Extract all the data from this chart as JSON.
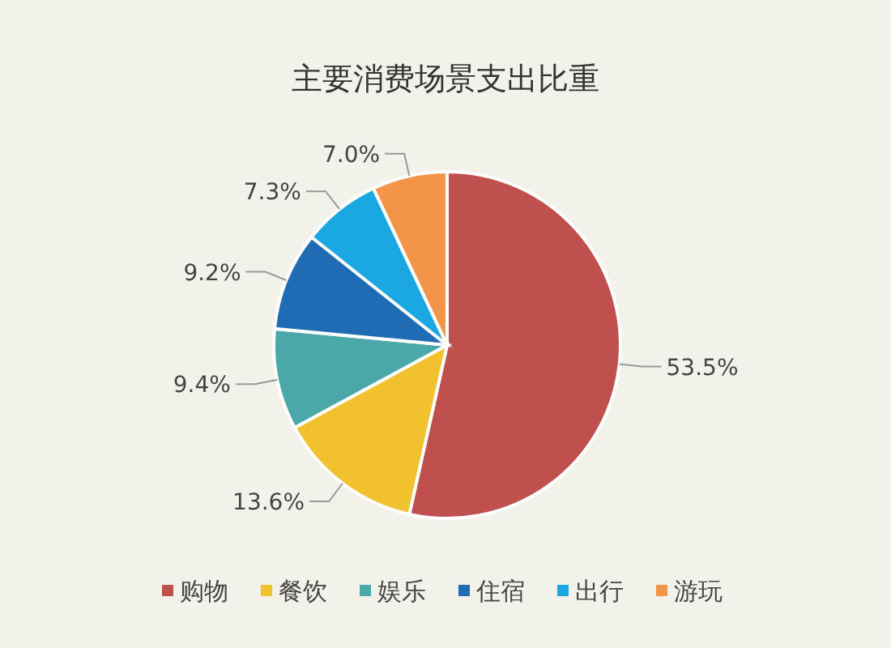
{
  "chart_data": {
    "type": "pie",
    "title": "主要消费场景支出比重",
    "categories": [
      "购物",
      "餐饮",
      "娱乐",
      "住宿",
      "出行",
      "游玩"
    ],
    "values": [
      53.5,
      13.6,
      9.4,
      9.2,
      7.3,
      7.0
    ],
    "value_labels": [
      "53.5%",
      "13.6%",
      "9.4%",
      "9.2%",
      "7.3%",
      "7.0%"
    ],
    "colors": [
      "#c0504d",
      "#f2c12e",
      "#4ba8a8",
      "#1f6cb5",
      "#1ba8e2",
      "#f39549"
    ],
    "legend": "bottom"
  }
}
